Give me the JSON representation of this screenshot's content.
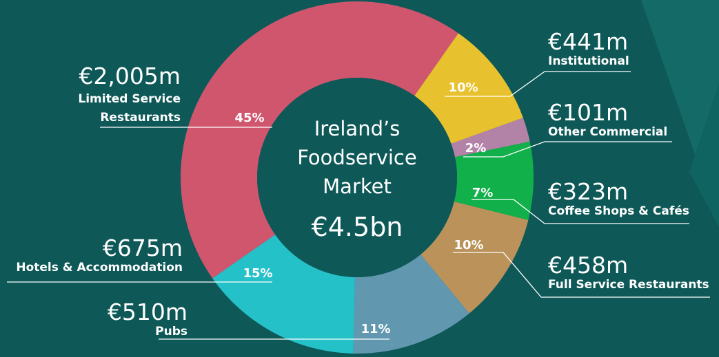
{
  "chart_data": {
    "type": "donut",
    "center_title": [
      "Ireland’s",
      "Foodservice",
      "Market"
    ],
    "total_label": "€4.5bn",
    "categories": [
      "Institutional",
      "Other Commercial",
      "Coffee Shops & Cafés",
      "Full Service Restaurants",
      "Pubs",
      "Hotels & Accommodation",
      "Limited Service Restaurants"
    ],
    "values": [
      441,
      101,
      323,
      458,
      510,
      675,
      2005
    ],
    "value_labels": [
      "€441m",
      "€101m",
      "€323m",
      "€458m",
      "€510m",
      "€675m",
      "€2,005m"
    ],
    "percentages": [
      10,
      2,
      7,
      10,
      11,
      15,
      45
    ],
    "percentage_labels": [
      "10%",
      "2%",
      "7%",
      "10%",
      "11%",
      "15%",
      "45%"
    ],
    "colors": [
      "#e8c22e",
      "#b383a7",
      "#12b04a",
      "#bb935a",
      "#6198b0",
      "#25c1c9",
      "#d0566e"
    ]
  }
}
